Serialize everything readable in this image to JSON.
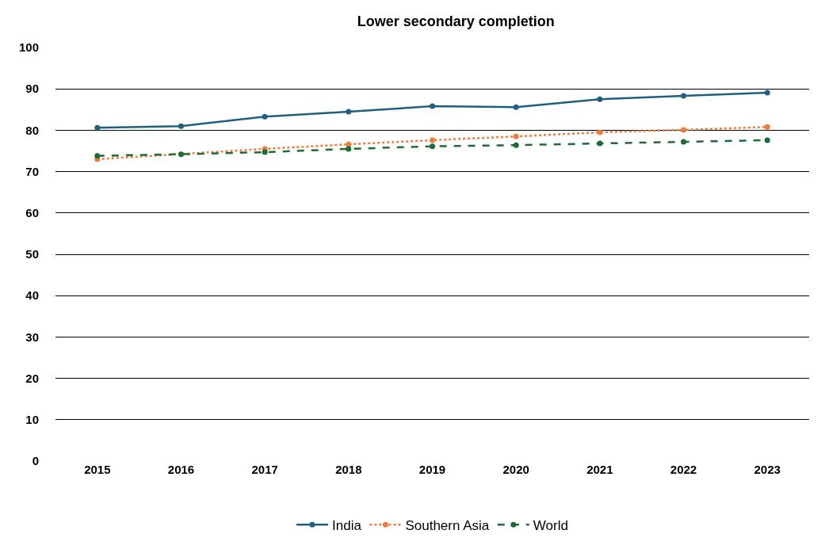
{
  "chart_data": {
    "type": "line",
    "title": "Lower secondary completion",
    "categories": [
      "2015",
      "2016",
      "2017",
      "2018",
      "2019",
      "2020",
      "2021",
      "2022",
      "2023"
    ],
    "series": [
      {
        "name": "India",
        "color": "#1f6080",
        "line_style": "solid",
        "values": [
          80.6,
          81.0,
          83.3,
          84.5,
          85.8,
          85.6,
          87.5,
          88.3,
          89.1
        ]
      },
      {
        "name": "Southern Asia",
        "color": "#f07c3a",
        "line_style": "dotted",
        "values": [
          73.0,
          null,
          75.5,
          76.6,
          77.6,
          78.5,
          79.5,
          80.1,
          80.8
        ]
      },
      {
        "name": "World",
        "color": "#1e6b3a",
        "line_style": "dashed",
        "values": [
          73.8,
          74.2,
          74.7,
          75.5,
          76.1,
          76.4,
          76.8,
          77.2,
          77.6
        ]
      }
    ],
    "ylim": [
      0,
      100
    ],
    "yticks": [
      0,
      10,
      20,
      30,
      40,
      50,
      60,
      70,
      80,
      90,
      100
    ],
    "grid": "y",
    "legend": "bottom",
    "marker": "circle"
  }
}
